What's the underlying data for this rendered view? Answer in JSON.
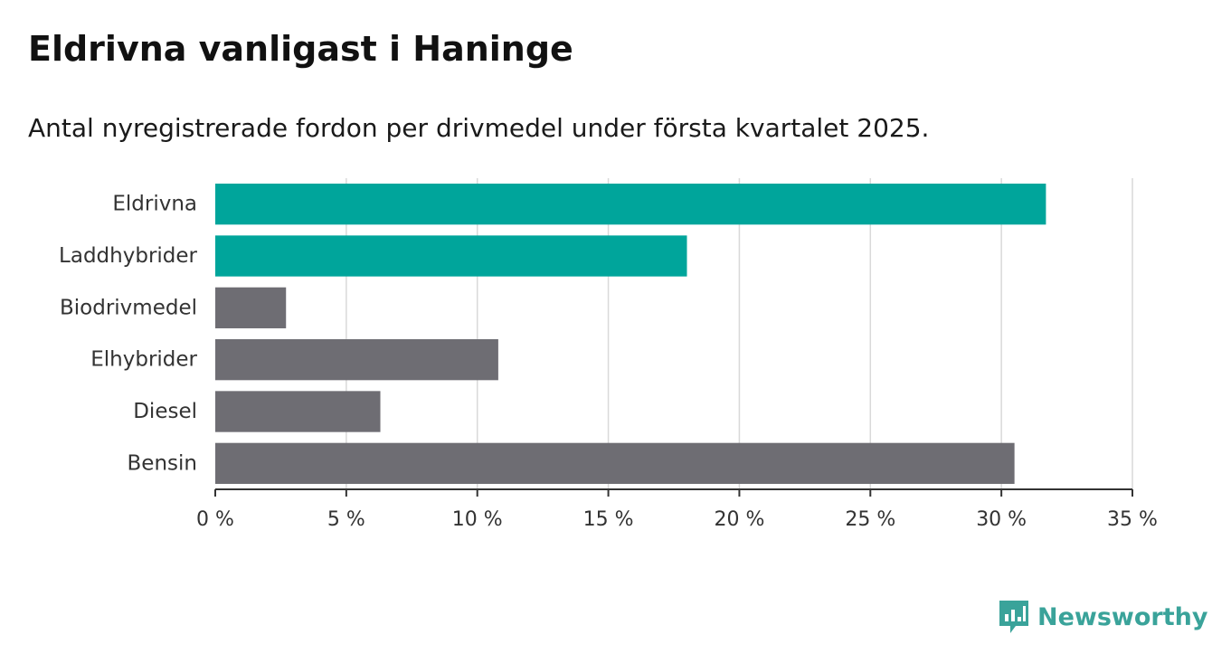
{
  "header": {
    "title": "Eldrivna vanligast i Haninge",
    "subtitle": "Antal nyregistrerade fordon per drivmedel under första kvartalet 2025."
  },
  "brand": {
    "name": "Newsworthy",
    "logo_icon": "bar-chart-speech-bubble-icon",
    "color": "#3aa39a"
  },
  "colors": {
    "highlight": "#00a59b",
    "default": "#6e6d73",
    "grid": "#d9d9d9",
    "axis": "#333333"
  },
  "chart_data": {
    "type": "bar",
    "orientation": "horizontal",
    "categories": [
      "Eldrivna",
      "Laddhybrider",
      "Biodrivmedel",
      "Elhybrider",
      "Diesel",
      "Bensin"
    ],
    "values": [
      31.7,
      18.0,
      2.7,
      10.8,
      6.3,
      30.5
    ],
    "highlighted": [
      true,
      true,
      false,
      false,
      false,
      false
    ],
    "xlim": [
      0,
      35
    ],
    "xticks": [
      0,
      5,
      10,
      15,
      20,
      25,
      30,
      35
    ],
    "xtick_labels": [
      "0 %",
      "5 %",
      "10 %",
      "15 %",
      "20 %",
      "25 %",
      "30 %",
      "35 %"
    ],
    "grid": "vertical",
    "legend": "none"
  }
}
